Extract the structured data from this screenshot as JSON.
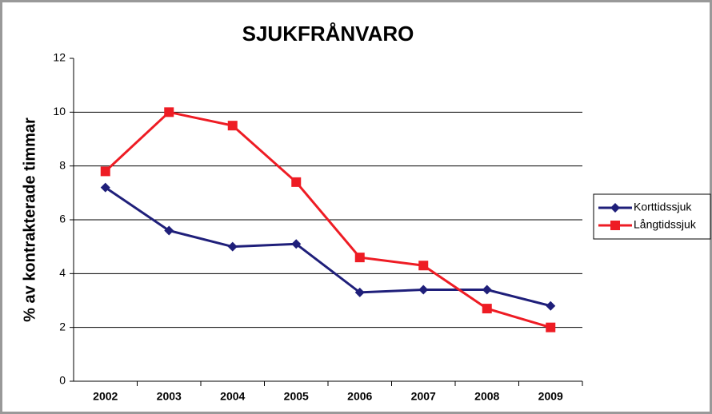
{
  "chart_data": {
    "type": "line",
    "title": "SJUKFRÅNVARO",
    "y_label": "% av kontrakterade timmar",
    "categories": [
      "2002",
      "2003",
      "2004",
      "2005",
      "2006",
      "2007",
      "2008",
      "2009"
    ],
    "series": [
      {
        "name": "Korttidssjuk",
        "color": "#1f1f7a",
        "marker": "diamond",
        "values": [
          7.2,
          5.6,
          5.0,
          5.1,
          3.3,
          3.4,
          3.4,
          2.8
        ]
      },
      {
        "name": "Långtidssjuk",
        "color": "#ee1c24",
        "marker": "square",
        "values": [
          7.8,
          10.0,
          9.5,
          7.4,
          4.6,
          4.3,
          2.7,
          2.0
        ]
      }
    ],
    "ylim": [
      0,
      12
    ],
    "yticks": [
      0,
      2,
      4,
      6,
      8,
      10,
      12
    ],
    "grid": true,
    "legend": "right"
  }
}
